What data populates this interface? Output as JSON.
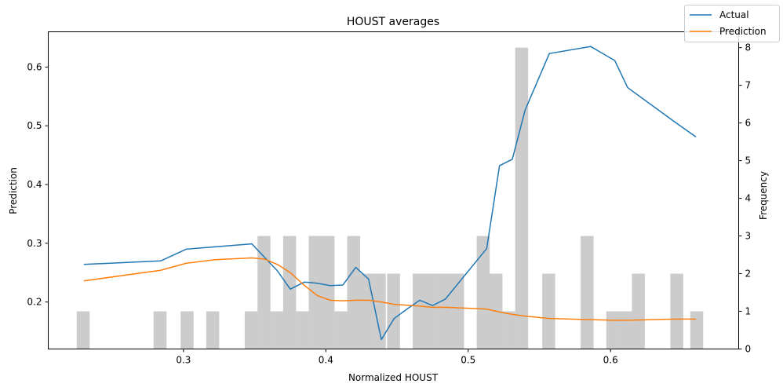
{
  "chart_data": {
    "type": "line",
    "title": "HOUST averages",
    "xlabel": "Normalized HOUST",
    "ylabel": "Prediction",
    "y2label": "Frequency",
    "xlim": [
      0.205,
      0.69
    ],
    "ylim": [
      0.12,
      0.66
    ],
    "y2lim": [
      0,
      8.42
    ],
    "x_ticks": [
      "0.3",
      "0.4",
      "0.5",
      "0.6"
    ],
    "y_ticks": [
      "0.2",
      "0.3",
      "0.4",
      "0.5",
      "0.6"
    ],
    "y2_ticks": [
      "0",
      "1",
      "2",
      "3",
      "4",
      "5",
      "6",
      "7",
      "8"
    ],
    "legend_position": "top-right",
    "grid": false,
    "colors": {
      "actual": "#1f77b4",
      "prediction": "#ff7f0e",
      "histogram": "#cccccc"
    },
    "series": [
      {
        "name": "Actual",
        "x": [
          0.23,
          0.284,
          0.302,
          0.322,
          0.348,
          0.366,
          0.375,
          0.385,
          0.394,
          0.403,
          0.412,
          0.421,
          0.43,
          0.439,
          0.448,
          0.457,
          0.466,
          0.475,
          0.484,
          0.513,
          0.522,
          0.531,
          0.54,
          0.557,
          0.586,
          0.603,
          0.612,
          0.646,
          0.66
        ],
        "values": [
          0.264,
          0.27,
          0.29,
          0.294,
          0.299,
          0.253,
          0.222,
          0.234,
          0.232,
          0.228,
          0.229,
          0.259,
          0.239,
          0.136,
          0.172,
          0.188,
          0.203,
          0.194,
          0.205,
          0.291,
          0.432,
          0.443,
          0.527,
          0.623,
          0.635,
          0.611,
          0.565,
          0.505,
          0.481
        ]
      },
      {
        "name": "Prediction",
        "x": [
          0.23,
          0.284,
          0.302,
          0.322,
          0.348,
          0.357,
          0.366,
          0.375,
          0.385,
          0.394,
          0.403,
          0.412,
          0.421,
          0.43,
          0.439,
          0.448,
          0.466,
          0.475,
          0.484,
          0.513,
          0.522,
          0.531,
          0.54,
          0.557,
          0.586,
          0.603,
          0.612,
          0.646,
          0.66
        ],
        "values": [
          0.236,
          0.254,
          0.266,
          0.272,
          0.275,
          0.273,
          0.264,
          0.25,
          0.228,
          0.211,
          0.203,
          0.202,
          0.203,
          0.203,
          0.2,
          0.196,
          0.193,
          0.191,
          0.191,
          0.188,
          0.183,
          0.179,
          0.176,
          0.172,
          0.17,
          0.169,
          0.169,
          0.171,
          0.171
        ]
      }
    ],
    "histogram": {
      "bin_width": 0.00909,
      "bin_starts": [
        0.225,
        0.279,
        0.298,
        0.316,
        0.343,
        0.352,
        0.361,
        0.37,
        0.379,
        0.388,
        0.397,
        0.406,
        0.415,
        0.424,
        0.433,
        0.443,
        0.461,
        0.47,
        0.479,
        0.488,
        0.506,
        0.515,
        0.524,
        0.533,
        0.552,
        0.579,
        0.597,
        0.606,
        0.615,
        0.642,
        0.656
      ],
      "counts": [
        1,
        1,
        1,
        1,
        1,
        3,
        1,
        3,
        1,
        3,
        3,
        1,
        3,
        2,
        2,
        2,
        2,
        2,
        2,
        2,
        3,
        2,
        1,
        8,
        2,
        3,
        1,
        1,
        2,
        2,
        1
      ]
    }
  }
}
